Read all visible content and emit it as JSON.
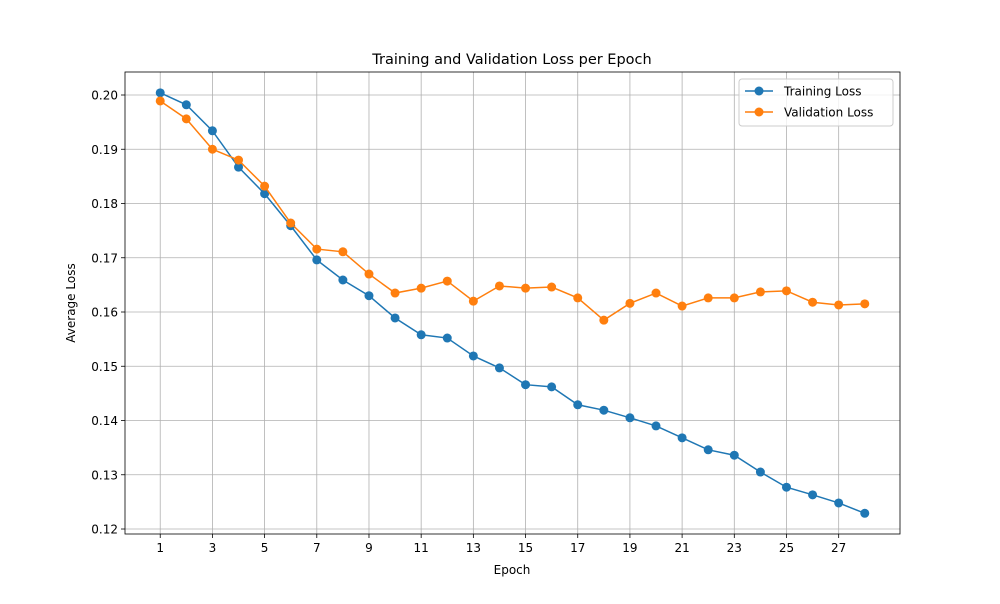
{
  "chart_data": {
    "type": "line",
    "title": "Training and Validation Loss per Epoch",
    "xlabel": "Epoch",
    "ylabel": "Average Loss",
    "xlim": [
      -0.35,
      29.35
    ],
    "ylim": [
      0.11908,
      0.20424
    ],
    "xticks": [
      1,
      3,
      5,
      7,
      9,
      11,
      13,
      15,
      17,
      19,
      21,
      23,
      25,
      27
    ],
    "yticks": [
      "0.12",
      "0.13",
      "0.14",
      "0.15",
      "0.16",
      "0.17",
      "0.18",
      "0.19",
      "0.20"
    ],
    "grid": true,
    "legend_placement": "top-right",
    "x": [
      1,
      2,
      3,
      4,
      5,
      6,
      7,
      8,
      9,
      10,
      11,
      12,
      13,
      14,
      15,
      16,
      17,
      18,
      19,
      20,
      21,
      22,
      23,
      24,
      25,
      26,
      27,
      28
    ],
    "series": [
      {
        "name": "Training Loss",
        "color": "#1f77b4",
        "marker": "circle",
        "values": [
          0.2004,
          0.1982,
          0.1934,
          0.1867,
          0.1818,
          0.1759,
          0.1696,
          0.1659,
          0.163,
          0.1589,
          0.1558,
          0.1552,
          0.1519,
          0.1497,
          0.1466,
          0.1462,
          0.1429,
          0.1419,
          0.1405,
          0.139,
          0.1368,
          0.1346,
          0.1336,
          0.1305,
          0.1277,
          0.1263,
          0.1248,
          0.1229
        ]
      },
      {
        "name": "Validation Loss",
        "color": "#ff7f0e",
        "marker": "circle",
        "values": [
          0.1989,
          0.1956,
          0.19,
          0.188,
          0.1832,
          0.1764,
          0.1716,
          0.1711,
          0.167,
          0.1635,
          0.1644,
          0.1657,
          0.162,
          0.1648,
          0.1644,
          0.1646,
          0.1626,
          0.1585,
          0.1616,
          0.1635,
          0.1611,
          0.1626,
          0.1626,
          0.1637,
          0.1639,
          0.1618,
          0.1613,
          0.1615
        ]
      }
    ]
  }
}
